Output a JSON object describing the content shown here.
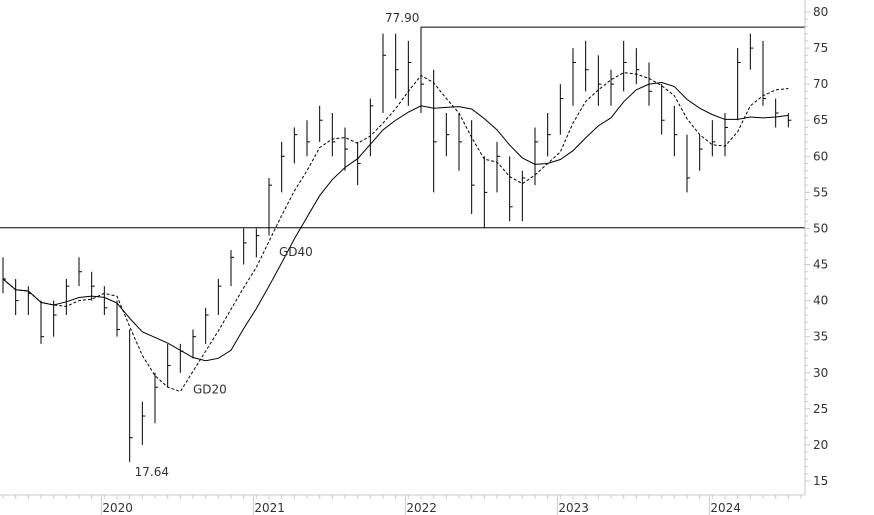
{
  "chart_data": {
    "type": "ohlc-bar",
    "title": "",
    "xlabel": "",
    "ylabel": "",
    "ylim": [
      15,
      80
    ],
    "yticks": [
      "15",
      "20",
      "25",
      "30",
      "35",
      "40",
      "45",
      "50",
      "55",
      "60",
      "65",
      "70",
      "75",
      "80"
    ],
    "xticks": [
      "2020",
      "2021",
      "2022",
      "2023",
      "2024"
    ],
    "grid": false,
    "axis_color": "#c8c8c8",
    "bar_color": "#000000",
    "columns": [
      "date",
      "high",
      "low",
      "close"
    ],
    "bars": [
      [
        "2019-05",
        46,
        41,
        43
      ],
      [
        "2019-06",
        43,
        38,
        40
      ],
      [
        "2019-07",
        42,
        38,
        41
      ],
      [
        "2019-08",
        40,
        34,
        35
      ],
      [
        "2019-09",
        40,
        35,
        38
      ],
      [
        "2019-10",
        43,
        38,
        42
      ],
      [
        "2019-11",
        46,
        42,
        44
      ],
      [
        "2019-12",
        44,
        40,
        42
      ],
      [
        "2020-01",
        42,
        38,
        39
      ],
      [
        "2020-02",
        40,
        35,
        36
      ],
      [
        "2020-03",
        36,
        17.64,
        21
      ],
      [
        "2020-04",
        26,
        20,
        24
      ],
      [
        "2020-05",
        30,
        23,
        28
      ],
      [
        "2020-06",
        34,
        28,
        31
      ],
      [
        "2020-07",
        34,
        30,
        33
      ],
      [
        "2020-08",
        36,
        32,
        35
      ],
      [
        "2020-09",
        39,
        34,
        38
      ],
      [
        "2020-10",
        43,
        38,
        42
      ],
      [
        "2020-11",
        47,
        42,
        46
      ],
      [
        "2020-12",
        50,
        45,
        48
      ],
      [
        "2021-01",
        50,
        46,
        49
      ],
      [
        "2021-02",
        57,
        49,
        56
      ],
      [
        "2021-03",
        62,
        55,
        60
      ],
      [
        "2021-04",
        64,
        59,
        63
      ],
      [
        "2021-05",
        65,
        60,
        62
      ],
      [
        "2021-06",
        67,
        62,
        65
      ],
      [
        "2021-07",
        66,
        60,
        62
      ],
      [
        "2021-08",
        64,
        58,
        61
      ],
      [
        "2021-09",
        62,
        56,
        59
      ],
      [
        "2021-10",
        68,
        60,
        67
      ],
      [
        "2021-11",
        77,
        66,
        74
      ],
      [
        "2021-12",
        77,
        68,
        72
      ],
      [
        "2022-01",
        76,
        67,
        73
      ],
      [
        "2022-02",
        77.9,
        66,
        70
      ],
      [
        "2022-03",
        72,
        55,
        62
      ],
      [
        "2022-04",
        66,
        60,
        63
      ],
      [
        "2022-05",
        66,
        58,
        62
      ],
      [
        "2022-06",
        65,
        52,
        56
      ],
      [
        "2022-07",
        60,
        50,
        55
      ],
      [
        "2022-08",
        62,
        55,
        60
      ],
      [
        "2022-09",
        60,
        51,
        53
      ],
      [
        "2022-10",
        58,
        51,
        57
      ],
      [
        "2022-11",
        64,
        56,
        62
      ],
      [
        "2022-12",
        66,
        60,
        63
      ],
      [
        "2023-01",
        70,
        63,
        68
      ],
      [
        "2023-02",
        75,
        67,
        73
      ],
      [
        "2023-03",
        76,
        69,
        72
      ],
      [
        "2023-04",
        74,
        67,
        70
      ],
      [
        "2023-05",
        72,
        67,
        70
      ],
      [
        "2023-06",
        76,
        69,
        73
      ],
      [
        "2023-07",
        75,
        70,
        72
      ],
      [
        "2023-08",
        73,
        67,
        69
      ],
      [
        "2023-09",
        70,
        63,
        65
      ],
      [
        "2023-10",
        67,
        60,
        63
      ],
      [
        "2023-11",
        63,
        55,
        57
      ],
      [
        "2023-12",
        63,
        58,
        61
      ],
      [
        "2024-01",
        65,
        60,
        62
      ],
      [
        "2024-02",
        66,
        60,
        64
      ],
      [
        "2024-03",
        75,
        65,
        73
      ],
      [
        "2024-04",
        77,
        72,
        75
      ],
      [
        "2024-05",
        76,
        67,
        68
      ],
      [
        "2024-06",
        68,
        64,
        66
      ],
      [
        "2024-07",
        66,
        64,
        65
      ]
    ],
    "moving_averages": [
      {
        "name": "GD20",
        "style": "dashed"
      },
      {
        "name": "GD40",
        "style": "solid"
      }
    ],
    "horizontal_lines": [
      {
        "value": 77.9,
        "from": "2022-02"
      },
      {
        "value": 50.1
      }
    ],
    "annotations": [
      {
        "text": "77.90",
        "date": "2022-02",
        "value": 77.9
      },
      {
        "text": "17.64",
        "date": "2020-03",
        "value": 17.64
      }
    ]
  }
}
